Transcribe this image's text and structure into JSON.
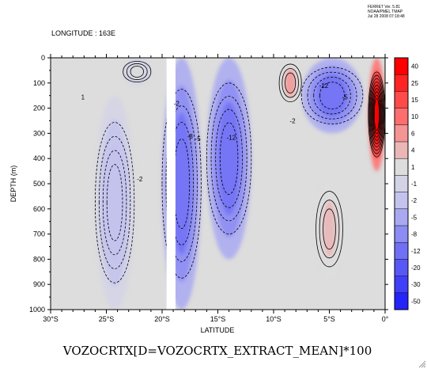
{
  "header": {
    "stamp_lines": [
      "FERRET Ver. 5.81",
      "NOAA/PMEL TMAP",
      "Jul 28 2008 07:18:48"
    ],
    "subtitle": "LONGITUDE : 163E"
  },
  "chart_data": {
    "type": "heatmap",
    "title": "VOZOCRTX[D=VOZOCRTX_EXTRACT_MEAN]*100",
    "subtitle": "LONGITUDE : 163E",
    "xlabel": "LATITUDE",
    "ylabel": "DEPTH (m)",
    "xlim": [
      -30,
      0
    ],
    "ylim": [
      1000,
      0
    ],
    "x_tick_values": [
      -30,
      -25,
      -20,
      -15,
      -10,
      -5,
      0
    ],
    "x_tick_labels": [
      "30°S",
      "25°S",
      "20°S",
      "15°S",
      "10°S",
      "5°S",
      "0°"
    ],
    "y_tick_values": [
      0,
      100,
      200,
      300,
      400,
      500,
      600,
      700,
      800,
      900,
      1000
    ],
    "y_tick_labels": [
      "0",
      "100",
      "200",
      "300",
      "400",
      "500",
      "600",
      "700",
      "800",
      "900",
      "1000"
    ],
    "colorbar": {
      "labels": [
        "40",
        "25",
        "15",
        "10",
        "6",
        "4",
        "1",
        "-1",
        "-2",
        "-5",
        "-8",
        "-12",
        "-20",
        "-30",
        "-50"
      ],
      "colors": [
        "#ff0000",
        "#ff2424",
        "#ff4a4a",
        "#ff6e6e",
        "#f59494",
        "#eab6b6",
        "#dddddd",
        "#d3d3e6",
        "#c3c3ee",
        "#a9a9f2",
        "#8c8cf4",
        "#7070f6",
        "#5858f7",
        "#4040f9",
        "#2424fb"
      ]
    },
    "contour_labels": [
      {
        "lat": -18.7,
        "depth": 190,
        "text": "-2"
      },
      {
        "lat": -17.5,
        "depth": 320,
        "text": "-8"
      },
      {
        "lat": -16.8,
        "depth": 330,
        "text": "-5"
      },
      {
        "lat": -13.8,
        "depth": 325,
        "text": "-12"
      },
      {
        "lat": -8.3,
        "depth": 260,
        "text": "-2"
      },
      {
        "lat": -5.5,
        "depth": 120,
        "text": "-12"
      },
      {
        "lat": -3.6,
        "depth": 165,
        "text": "-5"
      },
      {
        "lat": -27.1,
        "depth": 165,
        "text": "1"
      },
      {
        "lat": -22.0,
        "depth": 490,
        "text": "-2"
      }
    ],
    "regions": [
      {
        "kind": "positive",
        "name": "equatorial-undercurrent",
        "lat_range": [
          -1.5,
          0
        ],
        "depth_range": [
          0,
          450
        ],
        "peak_value": 40
      },
      {
        "kind": "positive",
        "name": "subsurface-jet-8S",
        "lat_range": [
          -9.5,
          -7.5
        ],
        "depth_range": [
          0,
          200
        ],
        "peak_value": 6
      },
      {
        "kind": "positive",
        "name": "deep-jet-5S",
        "lat_range": [
          -6.2,
          -3.8
        ],
        "depth_range": [
          480,
          880
        ],
        "peak_value": 4
      },
      {
        "kind": "positive",
        "name": "surface-21S",
        "lat_range": [
          -23.5,
          -21.0
        ],
        "depth_range": [
          0,
          110
        ],
        "peak_value": 1
      },
      {
        "kind": "negative",
        "name": "band-18S",
        "lat_range": [
          -20.0,
          -16.5
        ],
        "depth_range": [
          0,
          1000
        ],
        "peak_value": -12
      },
      {
        "kind": "negative",
        "name": "band-14S",
        "lat_range": [
          -16.0,
          -12.0
        ],
        "depth_range": [
          0,
          800
        ],
        "peak_value": -12
      },
      {
        "kind": "negative",
        "name": "band-5S",
        "lat_range": [
          -7.5,
          -2.0
        ],
        "depth_range": [
          0,
          300
        ],
        "peak_value": -12
      },
      {
        "kind": "negative",
        "name": "band-24S",
        "lat_range": [
          -26.0,
          -22.5
        ],
        "depth_range": [
          150,
          1000
        ],
        "peak_value": -2
      }
    ]
  }
}
